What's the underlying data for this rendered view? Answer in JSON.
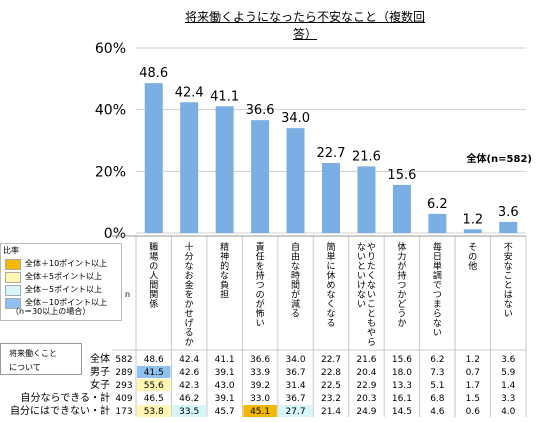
{
  "chart_data": {
    "type": "bar",
    "title": "将来働くようになったら不安なこと（複数回答）",
    "y_ticks": [
      "60%",
      "40%",
      "20%",
      "0%"
    ],
    "ylim": [
      0,
      60
    ],
    "annotation": "全体(n=582)",
    "n_header": "n",
    "categories": [
      "職場の人間関係",
      "十分なお金をかせげるか",
      "精神的な負担",
      "責任を持つのが怖い",
      "自由な時間が減る",
      "簡単に休めなくなる",
      "やりたくないこともやらないといけない",
      "体力が持つかどうか",
      "毎日単調でつまらない",
      "その他",
      "不安なことはない"
    ],
    "values": [
      48.6,
      42.4,
      41.1,
      36.6,
      34.0,
      22.7,
      21.6,
      15.6,
      6.2,
      1.2,
      3.6
    ],
    "value_labels": [
      "48.6",
      "42.4",
      "41.1",
      "36.6",
      "34.0",
      "22.7",
      "21.6",
      "15.6",
      "6.2",
      "1.2",
      "3.6"
    ],
    "bar_color": "#7bafe3",
    "table": {
      "rows": [
        {
          "label": "全体",
          "n": "582",
          "values": [
            "48.6",
            "42.4",
            "41.1",
            "36.6",
            "34.0",
            "22.7",
            "21.6",
            "15.6",
            "6.2",
            "1.2",
            "3.6"
          ],
          "hl": [
            "",
            "",
            "",
            "",
            "",
            "",
            "",
            "",
            "",
            "",
            ""
          ]
        },
        {
          "label": "男子",
          "n": "289",
          "values": [
            "41.5",
            "42.6",
            "39.1",
            "33.9",
            "36.7",
            "22.8",
            "20.4",
            "18.0",
            "7.3",
            "0.7",
            "5.9"
          ],
          "hl": [
            "b",
            "",
            "",
            "",
            "",
            "",
            "",
            "",
            "",
            "",
            ""
          ]
        },
        {
          "label": "女子",
          "n": "293",
          "values": [
            "55.6",
            "42.3",
            "43.0",
            "39.2",
            "31.4",
            "22.5",
            "22.9",
            "13.3",
            "5.1",
            "1.7",
            "1.4"
          ],
          "hl": [
            "y",
            "",
            "",
            "",
            "",
            "",
            "",
            "",
            "",
            "",
            ""
          ]
        },
        {
          "label": "自分ならできる・計",
          "n": "409",
          "values": [
            "46.5",
            "46.2",
            "39.1",
            "33.0",
            "36.7",
            "23.2",
            "20.3",
            "16.1",
            "6.8",
            "1.5",
            "3.3"
          ],
          "hl": [
            "",
            "",
            "",
            "",
            "",
            "",
            "",
            "",
            "",
            "",
            ""
          ]
        },
        {
          "label": "自分にはできない・計",
          "n": "173",
          "values": [
            "53.8",
            "33.5",
            "45.7",
            "45.1",
            "27.7",
            "21.4",
            "24.9",
            "14.5",
            "4.6",
            "0.6",
            "4.0"
          ],
          "hl": [
            "y",
            "c",
            "",
            "o",
            "c",
            "",
            "",
            "",
            "",
            "",
            ""
          ]
        }
      ]
    }
  },
  "legend": {
    "title": "比率",
    "items": [
      {
        "label": "全体＋10ポイント以上",
        "color": "#f5b800"
      },
      {
        "label": "全体＋5ポイント以上",
        "color": "#fff6b3"
      },
      {
        "label": "全体－5ポイント以上",
        "color": "#d6f6fa"
      },
      {
        "label": "全体－10ポイント以上",
        "color": "#8ec1ef"
      }
    ],
    "note": "（n＝30以上の場合）"
  },
  "row_group": {
    "line1": "将来働くこと",
    "line2": "について"
  }
}
